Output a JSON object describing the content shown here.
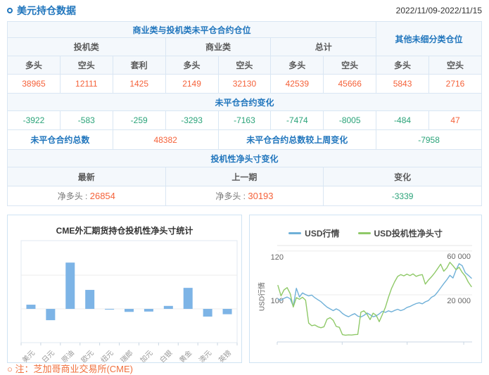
{
  "header": {
    "title": "美元持仓数据",
    "date_range": "2022/11/09-2022/11/15"
  },
  "table": {
    "group_header": "商业类与投机类未平仓合约仓位",
    "other_header": "其他未细分类仓位",
    "subgroups": [
      "投机类",
      "商业类",
      "总计"
    ],
    "col_headers": [
      "多头",
      "空头",
      "套利",
      "多头",
      "空头",
      "多头",
      "空头",
      "多头",
      "空头"
    ],
    "positions": [
      "38965",
      "12111",
      "1425",
      "2149",
      "32130",
      "42539",
      "45666",
      "5843",
      "2716"
    ],
    "change_section": "未平仓合约变化",
    "changes": [
      "-3922",
      "-583",
      "-259",
      "-3293",
      "-7163",
      "-7474",
      "-8005",
      "-484",
      "47"
    ],
    "total_label": "未平仓合约总数",
    "total_value": "48382",
    "total_change_label": "未平仓合约总数较上周变化",
    "total_change_value": "-7958",
    "net_section": "投机性净头寸变化",
    "net_headers": [
      "最新",
      "上一期",
      "变化"
    ],
    "net_latest_label": "净多头 :",
    "net_latest_value": "26854",
    "net_prev_label": "净多头 :",
    "net_prev_value": "30193",
    "net_change_value": "-3339"
  },
  "note": {
    "text": "○ 注：芝加哥商业交易所(CME)"
  },
  "colors": {
    "accent_blue": "#2176bd",
    "value_orange": "#f5623a",
    "value_green": "#2aa379",
    "bar_blue": "#7db4e6",
    "line_blue": "#6fb0d8",
    "line_green": "#8fc968"
  },
  "chart_data": [
    {
      "type": "bar",
      "title": "CME外汇期货持仓投机性净头寸统计",
      "categories": [
        "美元",
        "日元",
        "原油",
        "欧元",
        "纽元",
        "瑞郎",
        "加元",
        "白银",
        "黄金",
        "澳元",
        "英镑"
      ],
      "values": [
        26854,
        -72000,
        295000,
        121000,
        -4000,
        -19000,
        -17000,
        19000,
        134000,
        -49000,
        -34000
      ],
      "ylim": [
        -215000,
        435000
      ],
      "gridlines": [
        0,
        215000
      ],
      "bar_color": "#7db4e6",
      "xlabel": "",
      "ylabel": ""
    },
    {
      "type": "line",
      "legend": [
        "USD行情",
        "USD投机性净头寸"
      ],
      "ylabel_left": "USD行情",
      "left_ticks": [
        120,
        100
      ],
      "left_tick_labels": [
        "120",
        "100"
      ],
      "right_ticks": [
        60000,
        20000
      ],
      "right_tick_labels": [
        "60 000",
        "20 000"
      ],
      "left_ylim": [
        78.5,
        122.5
      ],
      "right_ylim": [
        -22500,
        64500
      ],
      "series": [
        {
          "name": "USD行情",
          "axis": "left",
          "color": "#6fb0d8",
          "values": [
            98.2,
            97.5,
            98.4,
            99.0,
            98.2,
            94.8,
            103.0,
            99.0,
            100.9,
            100.1,
            99.5,
            99.9,
            98.7,
            97.8,
            96.9,
            95.6,
            94.4,
            93.6,
            92.8,
            93.6,
            92.9,
            91.5,
            90.6,
            90.0,
            90.8,
            91.4,
            90.3,
            89.9,
            90.6,
            91.7,
            90.9,
            90.0,
            90.4,
            91.3,
            92.5,
            92.0,
            92.7,
            92.2,
            92.9,
            93.4,
            92.8,
            93.3,
            94.2,
            94.7,
            95.4,
            96.0,
            96.4,
            95.9,
            96.8,
            97.4,
            98.9,
            99.6,
            101.3,
            103.2,
            105.1,
            106.9,
            108.9,
            107.7,
            111.4,
            114.2,
            113.3,
            110.1,
            108.9,
            107.6
          ]
        },
        {
          "name": "USD投机性净头寸",
          "axis": "right",
          "color": "#8fc968",
          "values": [
            28500,
            19000,
            24500,
            26500,
            21000,
            9000,
            17500,
            16000,
            17800,
            15200,
            -5500,
            -7800,
            -7200,
            -8800,
            -9700,
            -8800,
            -2000,
            -600,
            -3000,
            -8500,
            -9300,
            -15900,
            -16400,
            -16100,
            -16300,
            -15900,
            -15700,
            4300,
            5600,
            2500,
            -2400,
            3500,
            1500,
            -4200,
            2200,
            8800,
            17800,
            25800,
            31800,
            36600,
            38300,
            37100,
            38700,
            37400,
            38900,
            36700,
            37700,
            38300,
            29700,
            33300,
            36300,
            39700,
            43700,
            47700,
            41300,
            44300,
            49400,
            46300,
            42700,
            44900,
            40300,
            36900,
            31500,
            27400
          ]
        }
      ]
    }
  ]
}
